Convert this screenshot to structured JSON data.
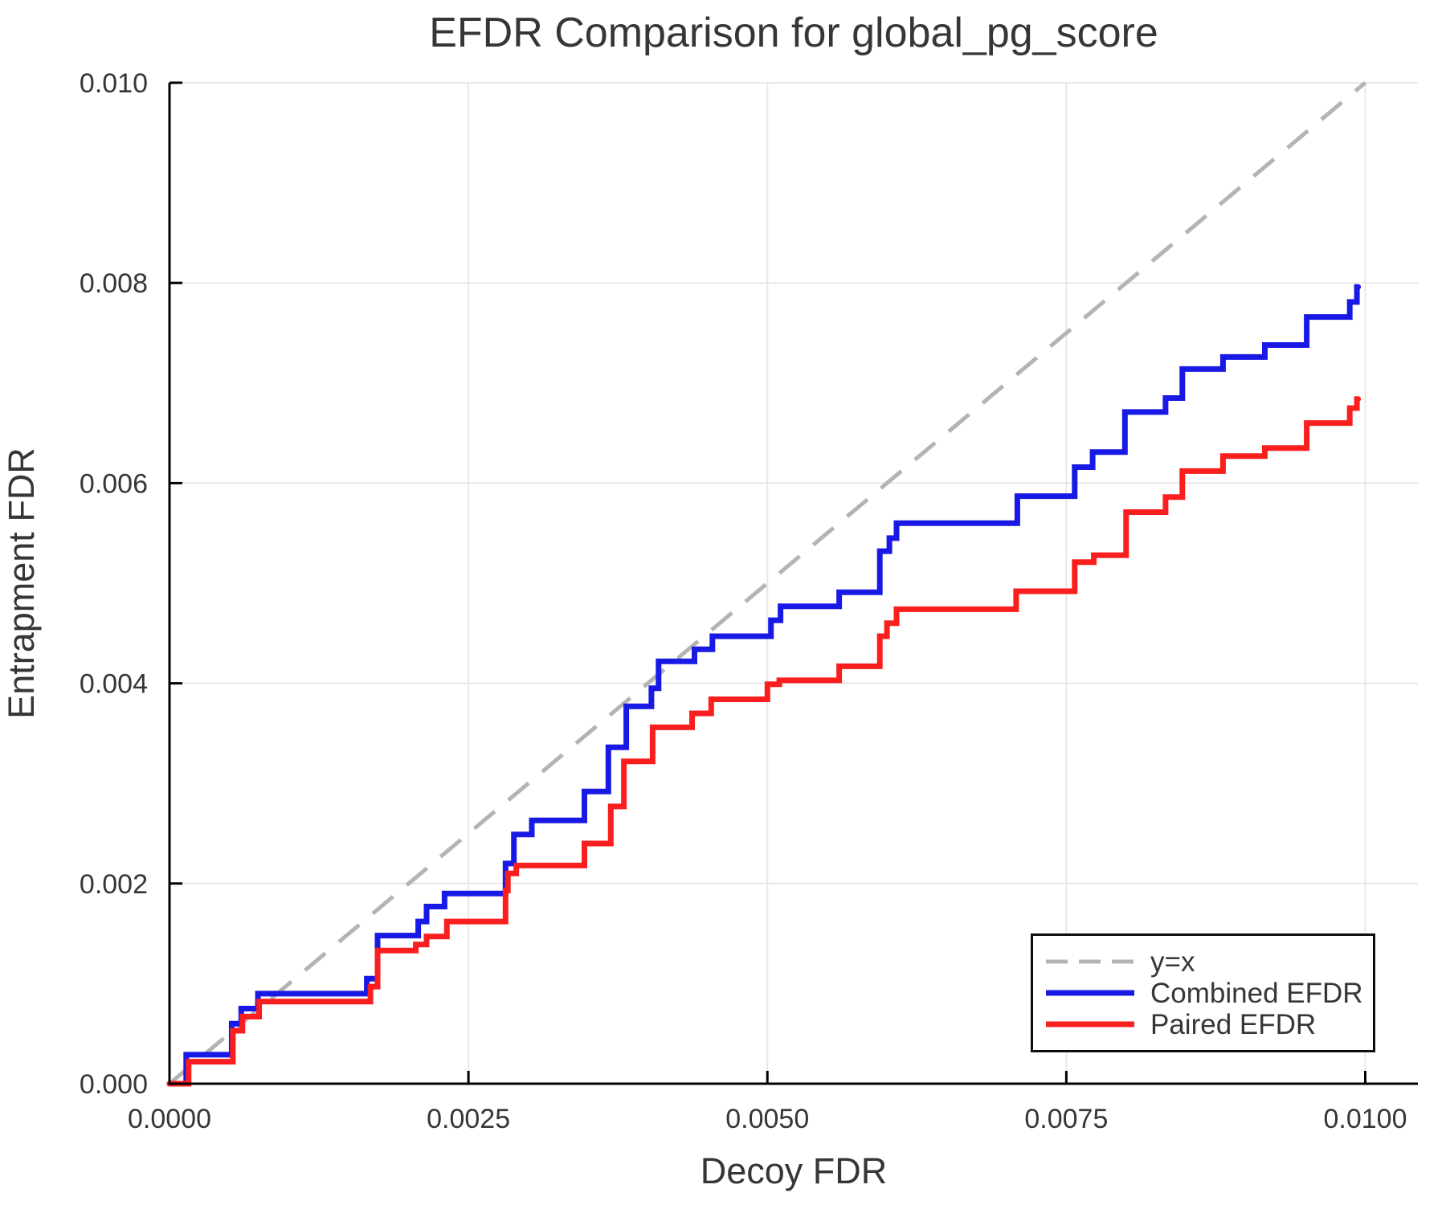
{
  "title": "EFDR Comparison for global_pg_score",
  "axes": {
    "x": {
      "label": "Decoy FDR",
      "ticks": [
        "0.0000",
        "0.0025",
        "0.0050",
        "0.0075",
        "0.0100"
      ],
      "tick_values": [
        0,
        0.0025,
        0.005,
        0.0075,
        0.01
      ]
    },
    "y": {
      "label": "Entrapment FDR",
      "ticks": [
        "0.000",
        "0.002",
        "0.004",
        "0.006",
        "0.008",
        "0.010"
      ],
      "tick_values": [
        0,
        0.002,
        0.004,
        0.006,
        0.008,
        0.01
      ]
    }
  },
  "legend": {
    "items": [
      {
        "label": "y=x",
        "color": "#b4b4b4",
        "dashed": true
      },
      {
        "label": "Combined EFDR",
        "color": "#1919e6",
        "dashed": false
      },
      {
        "label": "Paired EFDR",
        "color": "#fa1e1e",
        "dashed": false
      }
    ]
  },
  "plot": {
    "bg": "#ffffff",
    "grid_color": "#e8e8e8",
    "spine_color": "#000000",
    "text_color": "#363636"
  },
  "chart_data": {
    "type": "line",
    "title": "EFDR Comparison for global_pg_score",
    "xlabel": "Decoy FDR",
    "ylabel": "Entrapment FDR",
    "xlim": [
      0,
      0.01044
    ],
    "ylim": [
      0,
      0.01
    ],
    "grid": true,
    "legend_position": "bottom-right",
    "series": [
      {
        "name": "y=x",
        "style": "dashed",
        "color": "#b4b4b4",
        "points": [
          [
            0,
            0
          ],
          [
            0.01,
            0.01
          ]
        ]
      },
      {
        "name": "Combined EFDR",
        "style": "step",
        "color": "#1919e6",
        "start": [
          0,
          0
        ],
        "end_x": 0.00994,
        "steps": [
          [
            0.00014,
            0.00029
          ],
          [
            0.00052,
            0.0006
          ],
          [
            0.0006,
            0.00075
          ],
          [
            0.00074,
            0.0009
          ],
          [
            0.00165,
            0.00105
          ],
          [
            0.00174,
            0.00148
          ],
          [
            0.00208,
            0.00162
          ],
          [
            0.00215,
            0.00177
          ],
          [
            0.0023,
            0.0019
          ],
          [
            0.00281,
            0.0022
          ],
          [
            0.00288,
            0.00249
          ],
          [
            0.00303,
            0.00263
          ],
          [
            0.00347,
            0.00292
          ],
          [
            0.00367,
            0.00336
          ],
          [
            0.00382,
            0.00377
          ],
          [
            0.00403,
            0.00395
          ],
          [
            0.00409,
            0.00422
          ],
          [
            0.00439,
            0.00434
          ],
          [
            0.00454,
            0.00447
          ],
          [
            0.00503,
            0.00463
          ],
          [
            0.00511,
            0.00477
          ],
          [
            0.0056,
            0.00491
          ],
          [
            0.00594,
            0.00532
          ],
          [
            0.00602,
            0.00545
          ],
          [
            0.00608,
            0.0056
          ],
          [
            0.00709,
            0.00587
          ],
          [
            0.00757,
            0.00616
          ],
          [
            0.00772,
            0.00631
          ],
          [
            0.00799,
            0.00671
          ],
          [
            0.00833,
            0.00685
          ],
          [
            0.00847,
            0.00714
          ],
          [
            0.00881,
            0.00726
          ],
          [
            0.00916,
            0.00738
          ],
          [
            0.00951,
            0.00766
          ],
          [
            0.00987,
            0.00781
          ],
          [
            0.00993,
            0.00796
          ]
        ]
      },
      {
        "name": "Paired EFDR",
        "style": "step",
        "color": "#fa1e1e",
        "start": [
          0,
          0
        ],
        "end_x": 0.00994,
        "steps": [
          [
            0.00016,
            0.00022
          ],
          [
            0.00053,
            0.00053
          ],
          [
            0.00061,
            0.00067
          ],
          [
            0.00075,
            0.00082
          ],
          [
            0.00168,
            0.00097
          ],
          [
            0.00174,
            0.00133
          ],
          [
            0.00206,
            0.00139
          ],
          [
            0.00215,
            0.00147
          ],
          [
            0.00232,
            0.00162
          ],
          [
            0.00281,
            0.00193
          ],
          [
            0.00283,
            0.0021
          ],
          [
            0.0029,
            0.00218
          ],
          [
            0.00347,
            0.0024
          ],
          [
            0.00369,
            0.00277
          ],
          [
            0.0038,
            0.00322
          ],
          [
            0.00404,
            0.00356
          ],
          [
            0.00437,
            0.0037
          ],
          [
            0.00453,
            0.00384
          ],
          [
            0.005,
            0.00399
          ],
          [
            0.0051,
            0.00403
          ],
          [
            0.0056,
            0.00417
          ],
          [
            0.00594,
            0.00447
          ],
          [
            0.006,
            0.0046
          ],
          [
            0.00608,
            0.00474
          ],
          [
            0.00708,
            0.00492
          ],
          [
            0.00757,
            0.00521
          ],
          [
            0.00773,
            0.00528
          ],
          [
            0.008,
            0.00571
          ],
          [
            0.00833,
            0.00586
          ],
          [
            0.00847,
            0.00612
          ],
          [
            0.00881,
            0.00627
          ],
          [
            0.00916,
            0.00635
          ],
          [
            0.00951,
            0.0066
          ],
          [
            0.00987,
            0.00675
          ],
          [
            0.00993,
            0.00684
          ]
        ]
      }
    ]
  }
}
